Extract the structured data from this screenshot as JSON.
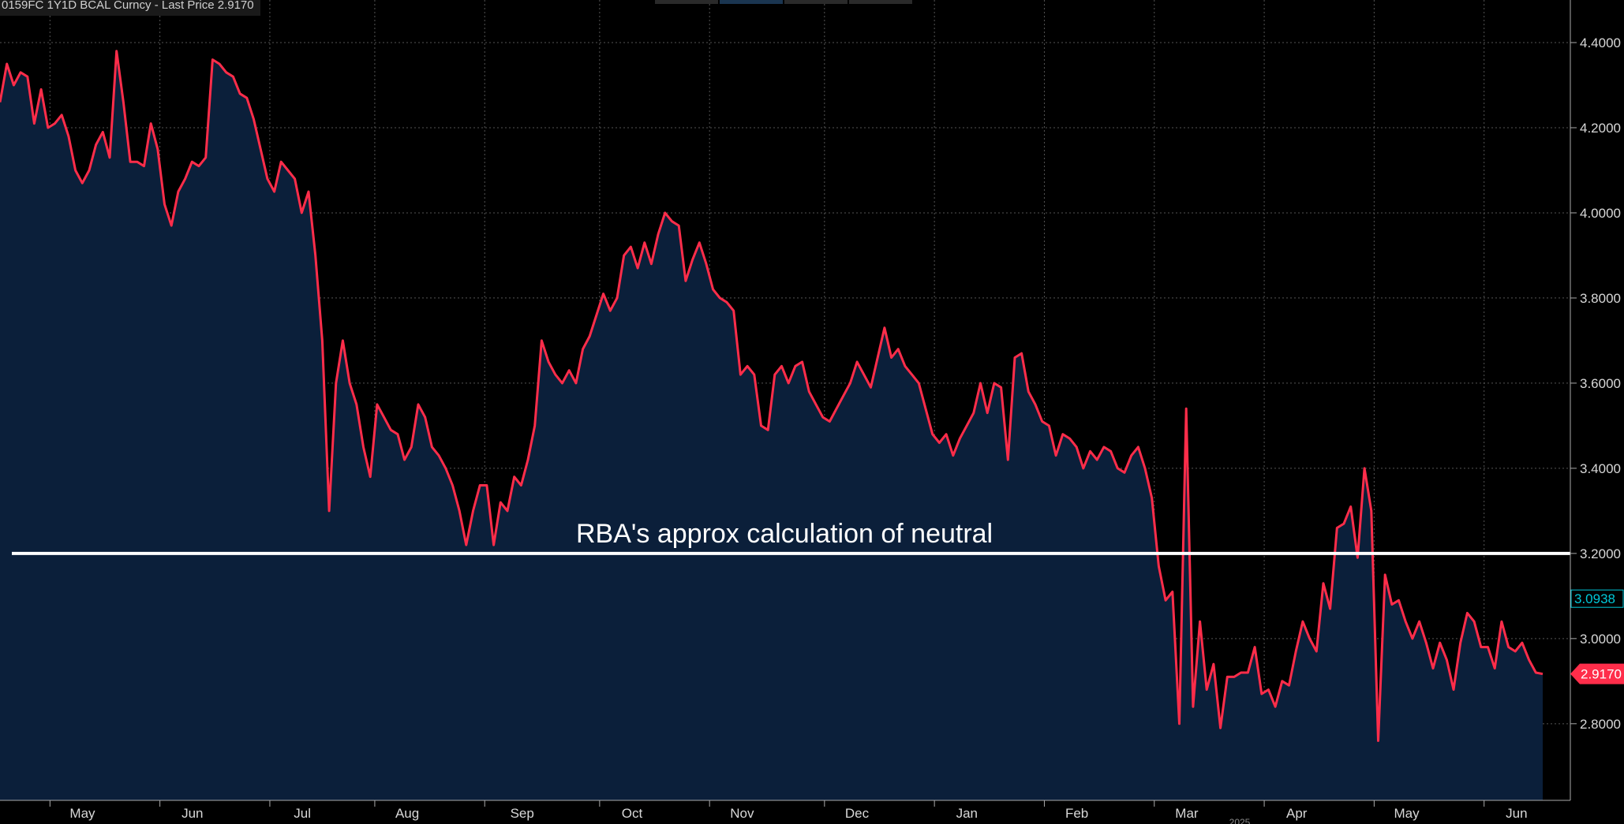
{
  "header": {
    "title": "0159FC 1Y1D BCAL Curncy - Last Price 2.9170"
  },
  "colors": {
    "background": "#000000",
    "area_fill": "#0b1f3a",
    "line": "#ff2d4a",
    "grid": "#555555",
    "axis_text": "#d8d8d8",
    "neutral_line": "#ffffff",
    "last_price_badge": "#ff2d4a",
    "marker_badge": "#00c8d8"
  },
  "chart_data": {
    "type": "area",
    "series": [
      {
        "values": [
          4.26,
          4.35,
          4.3,
          4.33,
          4.32,
          4.21,
          4.29,
          4.2,
          4.21,
          4.23,
          4.18,
          4.1,
          4.07,
          4.1,
          4.16,
          4.19,
          4.13,
          4.38,
          4.26,
          4.12,
          4.12,
          4.11,
          4.21,
          4.15,
          4.02,
          3.97,
          4.05,
          4.08,
          4.12,
          4.11,
          4.13,
          4.36,
          4.35,
          4.33,
          4.32,
          4.28,
          4.27,
          4.22,
          4.15,
          4.08,
          4.05,
          4.12,
          4.1,
          4.08,
          4.0,
          4.05,
          3.9,
          3.7,
          3.3,
          3.6,
          3.7,
          3.6,
          3.55,
          3.45,
          3.38,
          3.55,
          3.52,
          3.49,
          3.48,
          3.42,
          3.45,
          3.55,
          3.52,
          3.45,
          3.43,
          3.4,
          3.36,
          3.3,
          3.22,
          3.3,
          3.36,
          3.36,
          3.22,
          3.32,
          3.3,
          3.38,
          3.36,
          3.42,
          3.5,
          3.7,
          3.65,
          3.62,
          3.6,
          3.63,
          3.6,
          3.68,
          3.71,
          3.76,
          3.81,
          3.77,
          3.8,
          3.9,
          3.92,
          3.87,
          3.93,
          3.88,
          3.95,
          4.0,
          3.98,
          3.97,
          3.84,
          3.89,
          3.93,
          3.88,
          3.82,
          3.8,
          3.79,
          3.77,
          3.62,
          3.64,
          3.62,
          3.5,
          3.49,
          3.62,
          3.64,
          3.6,
          3.64,
          3.65,
          3.58,
          3.55,
          3.52,
          3.51,
          3.54,
          3.57,
          3.6,
          3.65,
          3.62,
          3.59,
          3.66,
          3.73,
          3.66,
          3.68,
          3.64,
          3.62,
          3.6,
          3.54,
          3.48,
          3.46,
          3.48,
          3.43,
          3.47,
          3.5,
          3.53,
          3.6,
          3.53,
          3.6,
          3.59,
          3.42,
          3.66,
          3.67,
          3.58,
          3.55,
          3.51,
          3.5,
          3.43,
          3.48,
          3.47,
          3.45,
          3.4,
          3.44,
          3.42,
          3.45,
          3.44,
          3.4,
          3.39,
          3.43,
          3.45,
          3.4,
          3.33,
          3.17,
          3.09,
          3.11,
          2.8,
          3.54,
          2.84,
          3.04,
          2.88,
          2.94,
          2.79,
          2.91,
          2.91,
          2.92,
          2.92,
          2.98,
          2.87,
          2.88,
          2.84,
          2.9,
          2.89,
          2.97,
          3.04,
          3.0,
          2.97,
          3.13,
          3.07,
          3.26,
          3.27,
          3.31,
          3.19,
          3.4,
          3.3,
          2.76,
          3.15,
          3.08,
          3.09,
          3.04,
          3.0,
          3.04,
          2.99,
          2.93,
          2.99,
          2.95,
          2.88,
          2.99,
          3.06,
          3.04,
          2.98,
          2.98,
          2.93,
          3.04,
          2.98,
          2.97,
          2.99,
          2.95,
          2.92,
          2.917
        ]
      }
    ],
    "y_ticks": [
      "4.4000",
      "4.2000",
      "4.0000",
      "3.8000",
      "3.6000",
      "3.4000",
      "3.2000",
      "3.0000",
      "2.8000"
    ],
    "y_tick_values": [
      4.4,
      4.2,
      4.0,
      3.8,
      3.6,
      3.4,
      3.2,
      3.0,
      2.8
    ],
    "ylim": [
      2.62,
      4.5
    ],
    "x_labels": [
      "May",
      "Jun",
      "Jul",
      "Aug",
      "Sep",
      "Oct",
      "Nov",
      "Dec",
      "Jan",
      "Feb",
      "Mar",
      "Apr",
      "May",
      "Jun"
    ],
    "x_label_positions": [
      16.5,
      38.5,
      60.5,
      81.5,
      104.5,
      126.5,
      148.5,
      171.5,
      193.5,
      215.5,
      237.5,
      259.5,
      281.5,
      303.5
    ],
    "x_year_label": "2025",
    "x_total_points": 310,
    "grid": true,
    "reference_line": {
      "value": 3.2,
      "label": "RBA's approx calculation of neutral"
    },
    "last_price": {
      "value": 2.917,
      "label": "2.9170"
    },
    "marker": {
      "value": 3.0938,
      "label": "3.0938"
    }
  }
}
